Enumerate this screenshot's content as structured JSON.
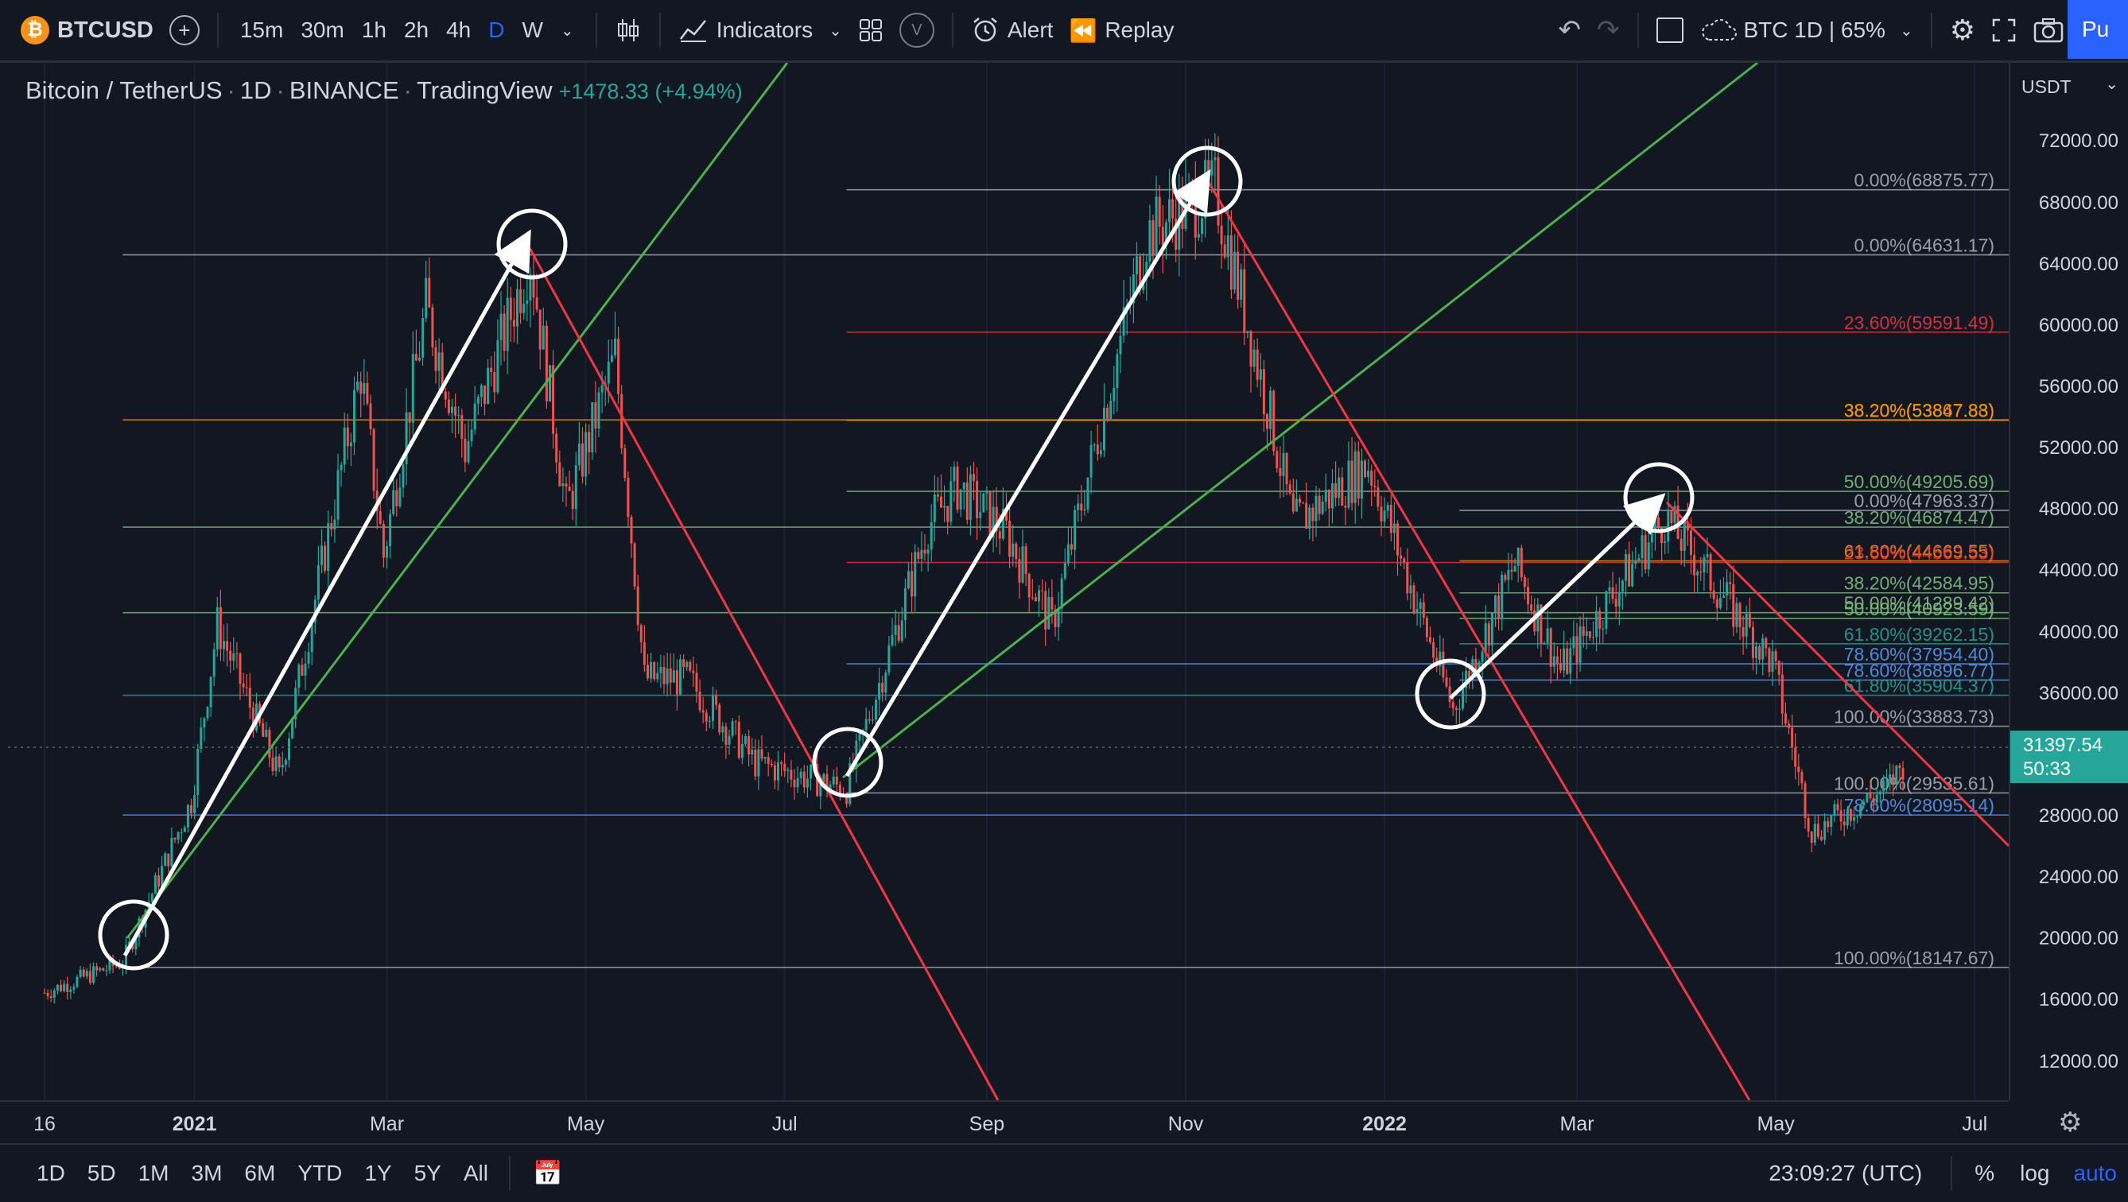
{
  "toolbar": {
    "symbol": "BTCUSD",
    "intervals": [
      "15m",
      "30m",
      "1h",
      "2h",
      "4h",
      "D",
      "W"
    ],
    "indicators_label": "Indicators",
    "alert_label": "Alert",
    "replay_label": "Replay",
    "v_label": "V",
    "layout_label": "BTC 1D | 65%",
    "publish_label": "Pu"
  },
  "legend": {
    "symbol_name": "Bitcoin / TetherUS",
    "interval": "1D",
    "exchange": "BINANCE",
    "source": "TradingView",
    "change": "+1478.33 (+4.94%)"
  },
  "price_scale": {
    "currency": "USDT",
    "labels": [
      "72000.00",
      "68000.00",
      "64000.00",
      "60000.00",
      "56000.00",
      "52000.00",
      "48000.00",
      "44000.00",
      "40000.00",
      "36000.00",
      "28000.00",
      "24000.00",
      "20000.00",
      "16000.00",
      "12000.00"
    ],
    "last_price": "31397.54",
    "countdown": "50:33"
  },
  "time_axis": {
    "labels": [
      "16",
      "2021",
      "Mar",
      "May",
      "Jul",
      "Sep",
      "Nov",
      "2022",
      "Mar",
      "May",
      "Jul"
    ]
  },
  "fib_labels": [
    "0.00%(68875.77)",
    "0.00%(64631.17)",
    "23.60%(59591.49)",
    "38.20%(53847.83)",
    "38.20%(53867.88)",
    "50.00%(49205.69)",
    "0.00%(47963.37)",
    "38.20%(46874.47)",
    "61.80%(44669.55)",
    "23.60%(44563.53)",
    "38.20%(42584.95)",
    "50.00%(41289.42)",
    "50.00%(40923.59)",
    "61.80%(39262.15)",
    "78.60%(37954.40)",
    "78.60%(36896.77)",
    "61.80%(35904.37)",
    "100.00%(33883.73)",
    "100.00%(29535.61)",
    "78.60%(28095.14)",
    "100.00%(18147.67)"
  ],
  "bottom": {
    "ranges": [
      "1D",
      "5D",
      "1M",
      "3M",
      "6M",
      "YTD",
      "1Y",
      "5Y",
      "All"
    ],
    "clock": "23:09:27 (UTC)",
    "percent_label": "%",
    "log_label": "log",
    "auto_label": "auto"
  },
  "chart_data": {
    "type": "candlestick",
    "symbol": "Bitcoin / TetherUS",
    "interval": "1D",
    "x_range": [
      "2020-11-16",
      "2022-07-01"
    ],
    "ylim": [
      10000,
      74000
    ],
    "last_price": 31397.54,
    "change": 1478.33,
    "change_pct": 4.94,
    "close_path": [
      [
        "2020-11-16",
        16500
      ],
      [
        "2020-12-10",
        18500
      ],
      [
        "2020-12-31",
        29000
      ],
      [
        "2021-01-08",
        40500
      ],
      [
        "2021-01-27",
        30500
      ],
      [
        "2021-02-21",
        57000
      ],
      [
        "2021-02-28",
        45000
      ],
      [
        "2021-03-13",
        61200
      ],
      [
        "2021-03-25",
        52000
      ],
      [
        "2021-04-14",
        64500
      ],
      [
        "2021-04-25",
        48000
      ],
      [
        "2021-05-10",
        58000
      ],
      [
        "2021-05-19",
        37000
      ],
      [
        "2021-06-01",
        37000
      ],
      [
        "2021-06-22",
        31500
      ],
      [
        "2021-07-20",
        29800
      ],
      [
        "2021-08-14",
        47000
      ],
      [
        "2021-08-23",
        49500
      ],
      [
        "2021-09-07",
        46500
      ],
      [
        "2021-09-21",
        40500
      ],
      [
        "2021-10-20",
        66000
      ],
      [
        "2021-11-10",
        68900
      ],
      [
        "2021-11-27",
        54000
      ],
      [
        "2021-12-04",
        47000
      ],
      [
        "2021-12-27",
        51000
      ],
      [
        "2022-01-22",
        35000
      ],
      [
        "2022-02-10",
        44500
      ],
      [
        "2022-02-24",
        37500
      ],
      [
        "2022-03-28",
        47500
      ],
      [
        "2022-04-30",
        38000
      ],
      [
        "2022-05-12",
        27000
      ],
      [
        "2022-06-04",
        29800
      ],
      [
        "2022-06-09",
        31400
      ]
    ],
    "annotations": {
      "arrows": [
        {
          "from": [
            "2020-12-10",
            18100
          ],
          "to": [
            "2021-04-14",
            64500
          ]
        },
        {
          "from": [
            "2021-07-20",
            29500
          ],
          "to": [
            "2021-11-10",
            68900
          ]
        },
        {
          "from": [
            "2022-01-24",
            33900
          ],
          "to": [
            "2022-03-28",
            48000
          ]
        }
      ],
      "fib_levels": [
        68875.77,
        64631.17,
        59591.49,
        53847.83,
        53867.88,
        49205.69,
        47963.37,
        46874.47,
        44669.55,
        44563.53,
        42584.95,
        41289.42,
        40923.59,
        39262.15,
        37954.4,
        36896.77,
        35904.37,
        33883.73,
        29535.61,
        28095.14,
        18147.67
      ]
    }
  }
}
